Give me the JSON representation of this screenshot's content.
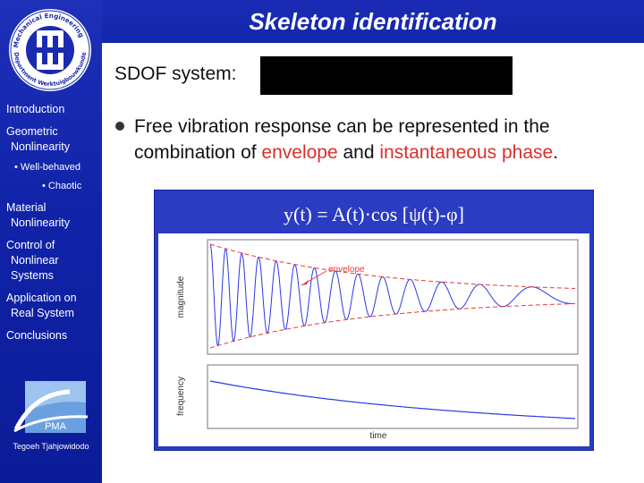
{
  "slide": {
    "title": "Skeleton identification",
    "sdof_label": "SDOF system:",
    "bullet": {
      "part1": "Free vibration response can be represented in the combination of ",
      "envelope": "envelope",
      "and": " and ",
      "phase": "instantaneous phase",
      "end": "."
    },
    "formula": "y(t) = A(t)·cos [ψ(t)-φ]"
  },
  "logo": {
    "ring_text": "Mechanical Engineering Department Werktuigbouwkunde"
  },
  "nav": {
    "introduction": "Introduction",
    "geometric_1": "Geometric",
    "geometric_2": "Nonlinearity",
    "well_behaved": "• Well-behaved",
    "chaotic": "• Chaotic",
    "material_1": "Material",
    "material_2": "Nonlinearity",
    "control_1": "Control of",
    "control_2": "Nonlinear",
    "control_3": "Systems",
    "application_1": "Application on",
    "application_2": "Real System",
    "conclusions": "Conclusions"
  },
  "pma": {
    "label": "PMA"
  },
  "author": "Tegoeh Tjahjowidodo",
  "plot": {
    "top_ylabel": "magnitude",
    "bottom_ylabel": "frequency",
    "xlabel": "time",
    "annotation": "envelope",
    "colors": {
      "signal": "#2b37e6",
      "envelope": "#e23a3a",
      "frequency": "#2b37e6",
      "axes": "#777777"
    }
  }
}
